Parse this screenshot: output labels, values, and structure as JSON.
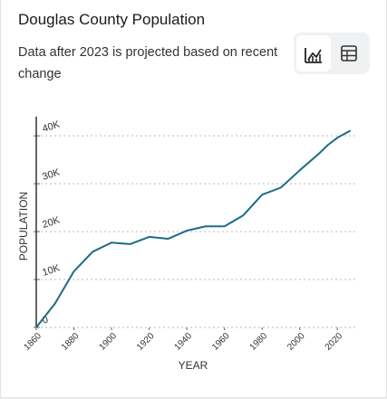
{
  "header": {
    "title": "Douglas County Population",
    "subtitle": "Data after 2023 is projected based on recent change"
  },
  "chart_data": {
    "type": "line",
    "x": [
      1860,
      1870,
      1880,
      1890,
      1900,
      1910,
      1920,
      1930,
      1940,
      1950,
      1960,
      1970,
      1980,
      1990,
      2000,
      2010,
      2015,
      2020,
      2027
    ],
    "values": [
      0,
      5000,
      11700,
      15800,
      17700,
      17400,
      18900,
      18500,
      20200,
      21100,
      21100,
      23400,
      27700,
      29200,
      32800,
      36200,
      38100,
      39600,
      41100
    ],
    "color": "#1d6a8a",
    "xlabel": "YEAR",
    "ylabel": "POPULATION",
    "xlim": [
      1860,
      2030
    ],
    "ylim": [
      0,
      44000
    ],
    "xticks": [
      1860,
      1880,
      1900,
      1920,
      1940,
      1960,
      1980,
      2000,
      2020
    ],
    "yticks": [
      0,
      {
        "value": 10000,
        "label": "10K"
      },
      {
        "value": 20000,
        "label": "20K"
      },
      {
        "value": 30000,
        "label": "30K"
      },
      {
        "value": 40000,
        "label": "40K"
      }
    ],
    "grid": true
  }
}
